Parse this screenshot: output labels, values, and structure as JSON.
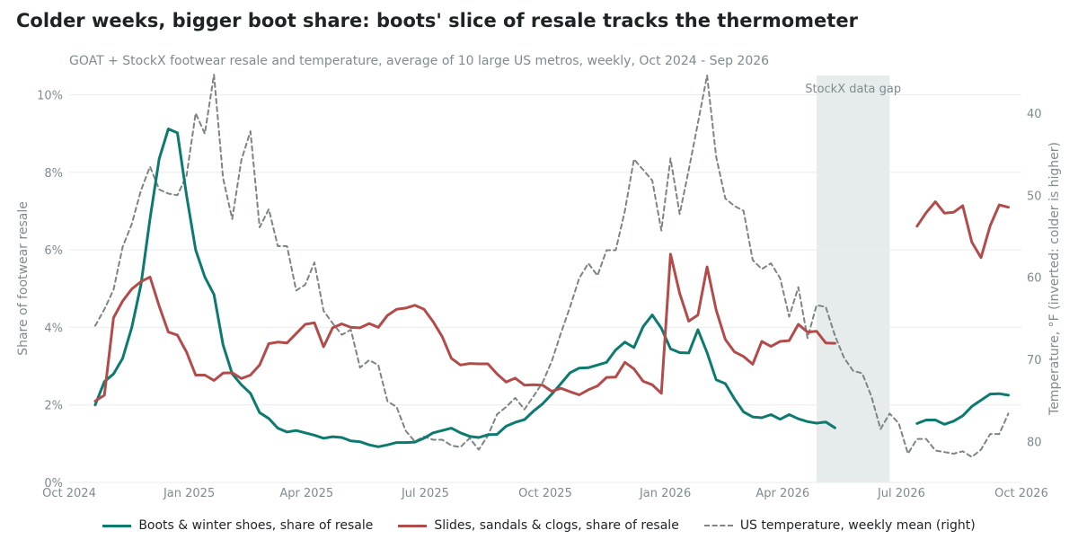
{
  "chart_data": {
    "type": "line",
    "title": "Colder weeks, bigger boot share: boots' slice of resale tracks the thermometer",
    "subtitle": "GOAT + StockX footwear resale and temperature, average of 10 large US metros, weekly, Oct 2024 - Sep 2026",
    "ylabel": "Share of footwear resale",
    "y2label": "Temperature, °F (inverted: colder is higher)",
    "ylim": [
      0,
      10.5
    ],
    "y2lim": [
      85,
      35.4
    ],
    "y2_inverted": true,
    "xlim": [
      "2024-10-01",
      "2026-10-01"
    ],
    "x_ticks": [
      {
        "date": "2024-10-01",
        "label": "Oct 2024"
      },
      {
        "date": "2025-01-01",
        "label": "Jan 2025"
      },
      {
        "date": "2025-04-01",
        "label": "Apr 2025"
      },
      {
        "date": "2025-07-01",
        "label": "Jul 2025"
      },
      {
        "date": "2025-10-01",
        "label": "Oct 2025"
      },
      {
        "date": "2026-01-01",
        "label": "Jan 2026"
      },
      {
        "date": "2026-04-01",
        "label": "Apr 2026"
      },
      {
        "date": "2026-07-01",
        "label": "Jul 2026"
      },
      {
        "date": "2026-10-01",
        "label": "Oct 2026"
      }
    ],
    "y_ticks": [
      {
        "value": 0,
        "label": "0%"
      },
      {
        "value": 2,
        "label": "2%"
      },
      {
        "value": 4,
        "label": "4%"
      },
      {
        "value": 6,
        "label": "6%"
      },
      {
        "value": 8,
        "label": "8%"
      },
      {
        "value": 10,
        "label": "10%"
      }
    ],
    "y2_ticks": [
      {
        "value": 40,
        "label": "40"
      },
      {
        "value": 50,
        "label": "50"
      },
      {
        "value": 60,
        "label": "60"
      },
      {
        "value": 70,
        "label": "70"
      },
      {
        "value": 80,
        "label": "80"
      }
    ],
    "grid": "horizontal",
    "legend_position": "bottom",
    "x_start": "2024-10-21",
    "x_step_days": 7,
    "gap_region": {
      "start": "2026-04-27",
      "end": "2026-06-22",
      "label": "StockX data gap"
    },
    "series": [
      {
        "name": "Boots & winter shoes, share of resale",
        "axis": "left",
        "color": "#0d7a70",
        "dash": "solid",
        "values": [
          2.0,
          2.6,
          2.8,
          3.2,
          4.0,
          5.1,
          6.8,
          8.35,
          9.12,
          9.02,
          7.4,
          6.0,
          5.3,
          4.85,
          3.55,
          2.8,
          2.52,
          2.3,
          1.8,
          1.65,
          1.4,
          1.3,
          1.34,
          1.28,
          1.22,
          1.14,
          1.18,
          1.16,
          1.07,
          1.05,
          0.97,
          0.92,
          0.97,
          1.03,
          1.03,
          1.04,
          1.14,
          1.28,
          1.34,
          1.4,
          1.28,
          1.19,
          1.16,
          1.23,
          1.24,
          1.45,
          1.55,
          1.62,
          1.84,
          2.03,
          2.28,
          2.55,
          2.83,
          2.95,
          2.96,
          3.03,
          3.1,
          3.42,
          3.62,
          3.48,
          4.02,
          4.32,
          3.98,
          3.45,
          3.35,
          3.34,
          3.94,
          3.35,
          2.65,
          2.55,
          2.16,
          1.82,
          1.69,
          1.67,
          1.75,
          1.63,
          1.75,
          1.64,
          1.57,
          1.53,
          1.56,
          1.41,
          null,
          null,
          null,
          null,
          null,
          null,
          null,
          null,
          1.52,
          1.61,
          1.61,
          1.5,
          1.58,
          1.72,
          1.96,
          2.12,
          2.28,
          2.29,
          2.25
        ]
      },
      {
        "name": "Slides, sandals & clogs, share of resale",
        "axis": "left",
        "color": "#b24c4a",
        "dash": "solid",
        "values": [
          2.1,
          2.25,
          4.25,
          4.68,
          4.99,
          5.18,
          5.3,
          4.55,
          3.88,
          3.8,
          3.36,
          2.77,
          2.77,
          2.63,
          2.82,
          2.83,
          2.68,
          2.77,
          3.03,
          3.58,
          3.62,
          3.6,
          3.84,
          4.08,
          4.12,
          3.5,
          3.99,
          4.09,
          4.0,
          3.99,
          4.1,
          4.0,
          4.31,
          4.47,
          4.5,
          4.57,
          4.47,
          4.15,
          3.76,
          3.2,
          3.03,
          3.07,
          3.06,
          3.06,
          2.8,
          2.59,
          2.69,
          2.51,
          2.52,
          2.51,
          2.35,
          2.43,
          2.34,
          2.26,
          2.39,
          2.49,
          2.71,
          2.72,
          3.1,
          2.93,
          2.61,
          2.52,
          2.3,
          5.89,
          4.88,
          4.16,
          4.32,
          5.56,
          4.45,
          3.69,
          3.37,
          3.25,
          3.05,
          3.64,
          3.51,
          3.64,
          3.66,
          4.08,
          3.88,
          3.9,
          3.6,
          3.59,
          null,
          null,
          null,
          null,
          null,
          null,
          null,
          null,
          6.61,
          6.96,
          7.24,
          6.95,
          6.97,
          7.14,
          6.2,
          5.8,
          6.62,
          7.16,
          7.1
        ]
      },
      {
        "name": "US temperature, weekly mean (right)",
        "axis": "right",
        "color": "#7d8582",
        "dash": "dashed",
        "values": [
          65.9,
          63.9,
          61.5,
          56.3,
          53.5,
          49.4,
          46.5,
          49.3,
          49.8,
          50.0,
          47.6,
          40.0,
          42.5,
          35.3,
          47.9,
          52.9,
          45.7,
          42.2,
          53.9,
          51.7,
          56.2,
          56.2,
          61.6,
          60.9,
          58.2,
          64.1,
          65.6,
          67.0,
          66.4,
          71.0,
          70.1,
          70.7,
          75.1,
          75.8,
          78.7,
          80.0,
          79.4,
          79.8,
          79.8,
          80.5,
          80.7,
          79.6,
          81.0,
          79.3,
          76.7,
          75.8,
          74.7,
          76.1,
          74.5,
          72.8,
          70.2,
          66.8,
          63.6,
          60.1,
          58.3,
          59.8,
          56.7,
          56.7,
          51.9,
          45.6,
          46.9,
          48.2,
          54.3,
          45.5,
          52.3,
          46.9,
          41.2,
          35.4,
          45.3,
          50.4,
          51.3,
          51.9,
          57.9,
          59.0,
          58.3,
          60.1,
          64.8,
          61.2,
          67.4,
          63.4,
          63.6,
          67.1,
          69.8,
          71.4,
          71.7,
          74.5,
          78.5,
          76.6,
          77.8,
          81.5,
          79.7,
          79.7,
          81.1,
          81.3,
          81.5,
          81.2,
          81.9,
          81.0,
          79.1,
          79.1,
          76.6
        ]
      }
    ]
  }
}
